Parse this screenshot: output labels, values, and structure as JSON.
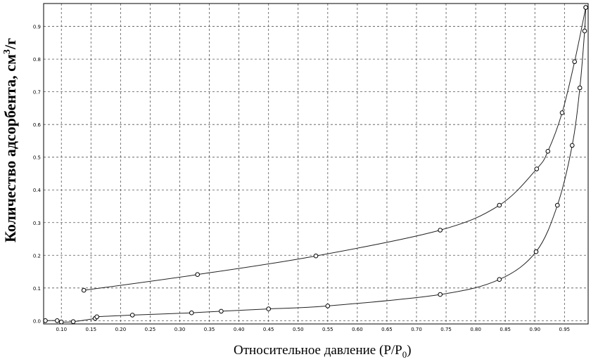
{
  "chart_data": {
    "type": "line",
    "xlabel": "Относительное давление (P/P",
    "xlabel_sub": "0",
    "xlabel_end": ")",
    "ylabel": "Количество адсорбента, см",
    "ylabel_sup": "3",
    "ylabel_end": "/г",
    "xlim": [
      0.07,
      0.99
    ],
    "ylim": [
      -0.01,
      0.97
    ],
    "x_ticks": [
      "0.10",
      "0.15",
      "0.20",
      "0.25",
      "0.30",
      "0.35",
      "0.40",
      "0.45",
      "0.50",
      "0.55",
      "0.60",
      "0.65",
      "0.70",
      "0.75",
      "0.80",
      "0.85",
      "0.90",
      "0.95"
    ],
    "y_ticks": [
      "0.0",
      "0.1",
      "0.2",
      "0.3",
      "0.4",
      "0.5",
      "0.6",
      "0.7",
      "0.8",
      "0.9"
    ],
    "grid": true,
    "series": [
      {
        "points": [
          {
            "x": 0.073,
            "y": 0.0
          },
          {
            "x": 0.093,
            "y": 0.0
          },
          {
            "x": 0.1,
            "y": -0.004
          },
          {
            "x": 0.12,
            "y": -0.003
          },
          {
            "x": 0.157,
            "y": 0.007
          },
          {
            "x": 0.16,
            "y": 0.012
          },
          {
            "x": 0.22,
            "y": 0.017
          },
          {
            "x": 0.32,
            "y": 0.024
          },
          {
            "x": 0.37,
            "y": 0.029
          },
          {
            "x": 0.45,
            "y": 0.036
          },
          {
            "x": 0.55,
            "y": 0.045
          },
          {
            "x": 0.74,
            "y": 0.08
          },
          {
            "x": 0.84,
            "y": 0.126
          },
          {
            "x": 0.902,
            "y": 0.211
          },
          {
            "x": 0.938,
            "y": 0.353
          },
          {
            "x": 0.963,
            "y": 0.536
          },
          {
            "x": 0.976,
            "y": 0.712
          },
          {
            "x": 0.984,
            "y": 0.886
          },
          {
            "x": 0.986,
            "y": 0.958
          }
        ]
      },
      {
        "points": [
          {
            "x": 0.986,
            "y": 0.958
          },
          {
            "x": 0.967,
            "y": 0.792
          },
          {
            "x": 0.946,
            "y": 0.636
          },
          {
            "x": 0.922,
            "y": 0.518
          },
          {
            "x": 0.903,
            "y": 0.464
          },
          {
            "x": 0.84,
            "y": 0.353
          },
          {
            "x": 0.74,
            "y": 0.277
          },
          {
            "x": 0.53,
            "y": 0.198
          },
          {
            "x": 0.33,
            "y": 0.141
          },
          {
            "x": 0.138,
            "y": 0.093
          }
        ]
      }
    ]
  }
}
